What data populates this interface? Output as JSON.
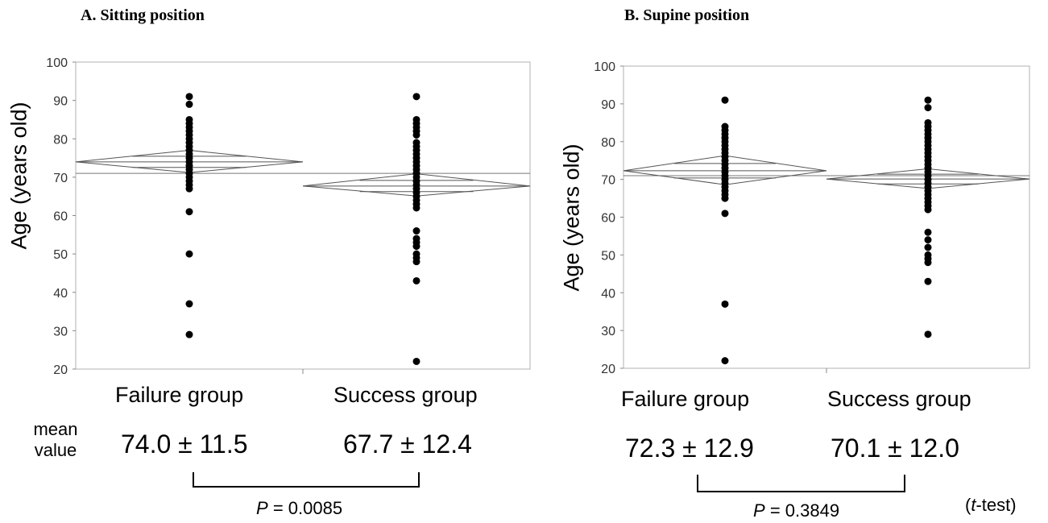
{
  "panels": [
    {
      "title": "A. Sitting position",
      "ylabel": "Age (years old)",
      "categories": [
        "Failure group",
        "Success group"
      ],
      "mean_label": "mean value",
      "means": [
        "74.0 ± 11.5",
        "67.7 ± 12.4"
      ],
      "p_prefix": "P",
      "p_value": "= 0.0085"
    },
    {
      "title": "B. Supine position",
      "ylabel": "Age (years old)",
      "categories": [
        "Failure group",
        "Success group"
      ],
      "means": [
        "72.3 ± 12.9",
        "70.1 ± 12.0"
      ],
      "p_prefix": "P",
      "p_value": "= 0.3849"
    }
  ],
  "test_note": {
    "open": "(",
    "italic": "t",
    "rest": "-test)"
  },
  "chart_data": [
    {
      "type": "scatter",
      "title": "A. Sitting position",
      "ylabel": "Age (years old)",
      "ylim": [
        20,
        100
      ],
      "yticks": [
        20,
        30,
        40,
        50,
        60,
        70,
        80,
        90,
        100
      ],
      "categories": [
        "Failure group",
        "Success group"
      ],
      "grand_mean": 71,
      "series": [
        {
          "category": "Failure group",
          "mean": 74.0,
          "sd": 11.5,
          "ci": [
            71.2,
            77.0
          ],
          "points": [
            91,
            89,
            85,
            84,
            83,
            82,
            81,
            80,
            79,
            78,
            77,
            76,
            75,
            74,
            73,
            72,
            71,
            70,
            69,
            68,
            67,
            61,
            50,
            37,
            29
          ]
        },
        {
          "category": "Success group",
          "mean": 67.7,
          "sd": 12.4,
          "ci": [
            65.1,
            70.9
          ],
          "points": [
            91,
            85,
            84,
            83,
            82,
            81,
            79,
            78,
            77,
            76,
            75,
            74,
            73,
            72,
            71,
            70,
            69,
            68,
            67,
            66,
            65,
            64,
            63,
            62,
            56,
            54,
            53,
            52,
            50,
            49,
            48,
            43,
            22
          ]
        }
      ]
    },
    {
      "type": "scatter",
      "title": "B. Supine position",
      "ylabel": "Age (years old)",
      "ylim": [
        20,
        100
      ],
      "yticks": [
        20,
        30,
        40,
        50,
        60,
        70,
        80,
        90,
        100
      ],
      "categories": [
        "Failure group",
        "Success group"
      ],
      "grand_mean": 71,
      "series": [
        {
          "category": "Failure group",
          "mean": 72.3,
          "sd": 12.9,
          "ci": [
            68.6,
            76.3
          ],
          "points": [
            91,
            84,
            83,
            82,
            81,
            80,
            79,
            78,
            77,
            76,
            75,
            74,
            73,
            72,
            71,
            70,
            69,
            68,
            67,
            66,
            65,
            61,
            37,
            22
          ]
        },
        {
          "category": "Success group",
          "mean": 70.1,
          "sd": 12.0,
          "ci": [
            67.6,
            72.8
          ],
          "points": [
            91,
            89,
            85,
            84,
            83,
            82,
            81,
            80,
            79,
            78,
            77,
            76,
            75,
            74,
            73,
            72,
            71,
            70,
            69,
            68,
            67,
            66,
            65,
            64,
            63,
            62,
            56,
            54,
            52,
            50,
            49,
            48,
            43,
            29
          ]
        }
      ]
    }
  ]
}
